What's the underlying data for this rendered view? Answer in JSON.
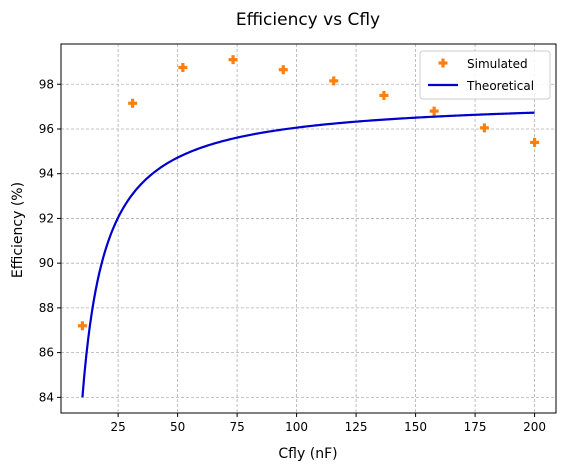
{
  "chart_data": {
    "type": "line",
    "title": "Efficiency vs Cfly",
    "xlabel": "Cfly (nF)",
    "ylabel": "Efficiency (%)",
    "xlim": [
      1,
      209
    ],
    "ylim": [
      83.3,
      99.8
    ],
    "xticks": [
      25,
      50,
      75,
      100,
      125,
      150,
      175,
      200
    ],
    "yticks": [
      84,
      86,
      88,
      90,
      92,
      94,
      96,
      98
    ],
    "grid": true,
    "grid_style": "dashed",
    "legend_position": "top-right",
    "series": [
      {
        "name": "Simulated",
        "kind": "scatter",
        "marker": "plus",
        "color": "#ff7f0e",
        "x": [
          10,
          31.1,
          52.2,
          73.3,
          94.4,
          115.6,
          136.7,
          157.8,
          178.9,
          200
        ],
        "y": [
          87.2,
          97.15,
          98.75,
          99.1,
          98.65,
          98.15,
          97.5,
          96.8,
          96.05,
          95.4
        ]
      },
      {
        "name": "Theoretical",
        "kind": "line",
        "color": "#0000cc",
        "formula": "y = 97.4 - 134 / x",
        "x_range": [
          10,
          200
        ]
      }
    ]
  }
}
